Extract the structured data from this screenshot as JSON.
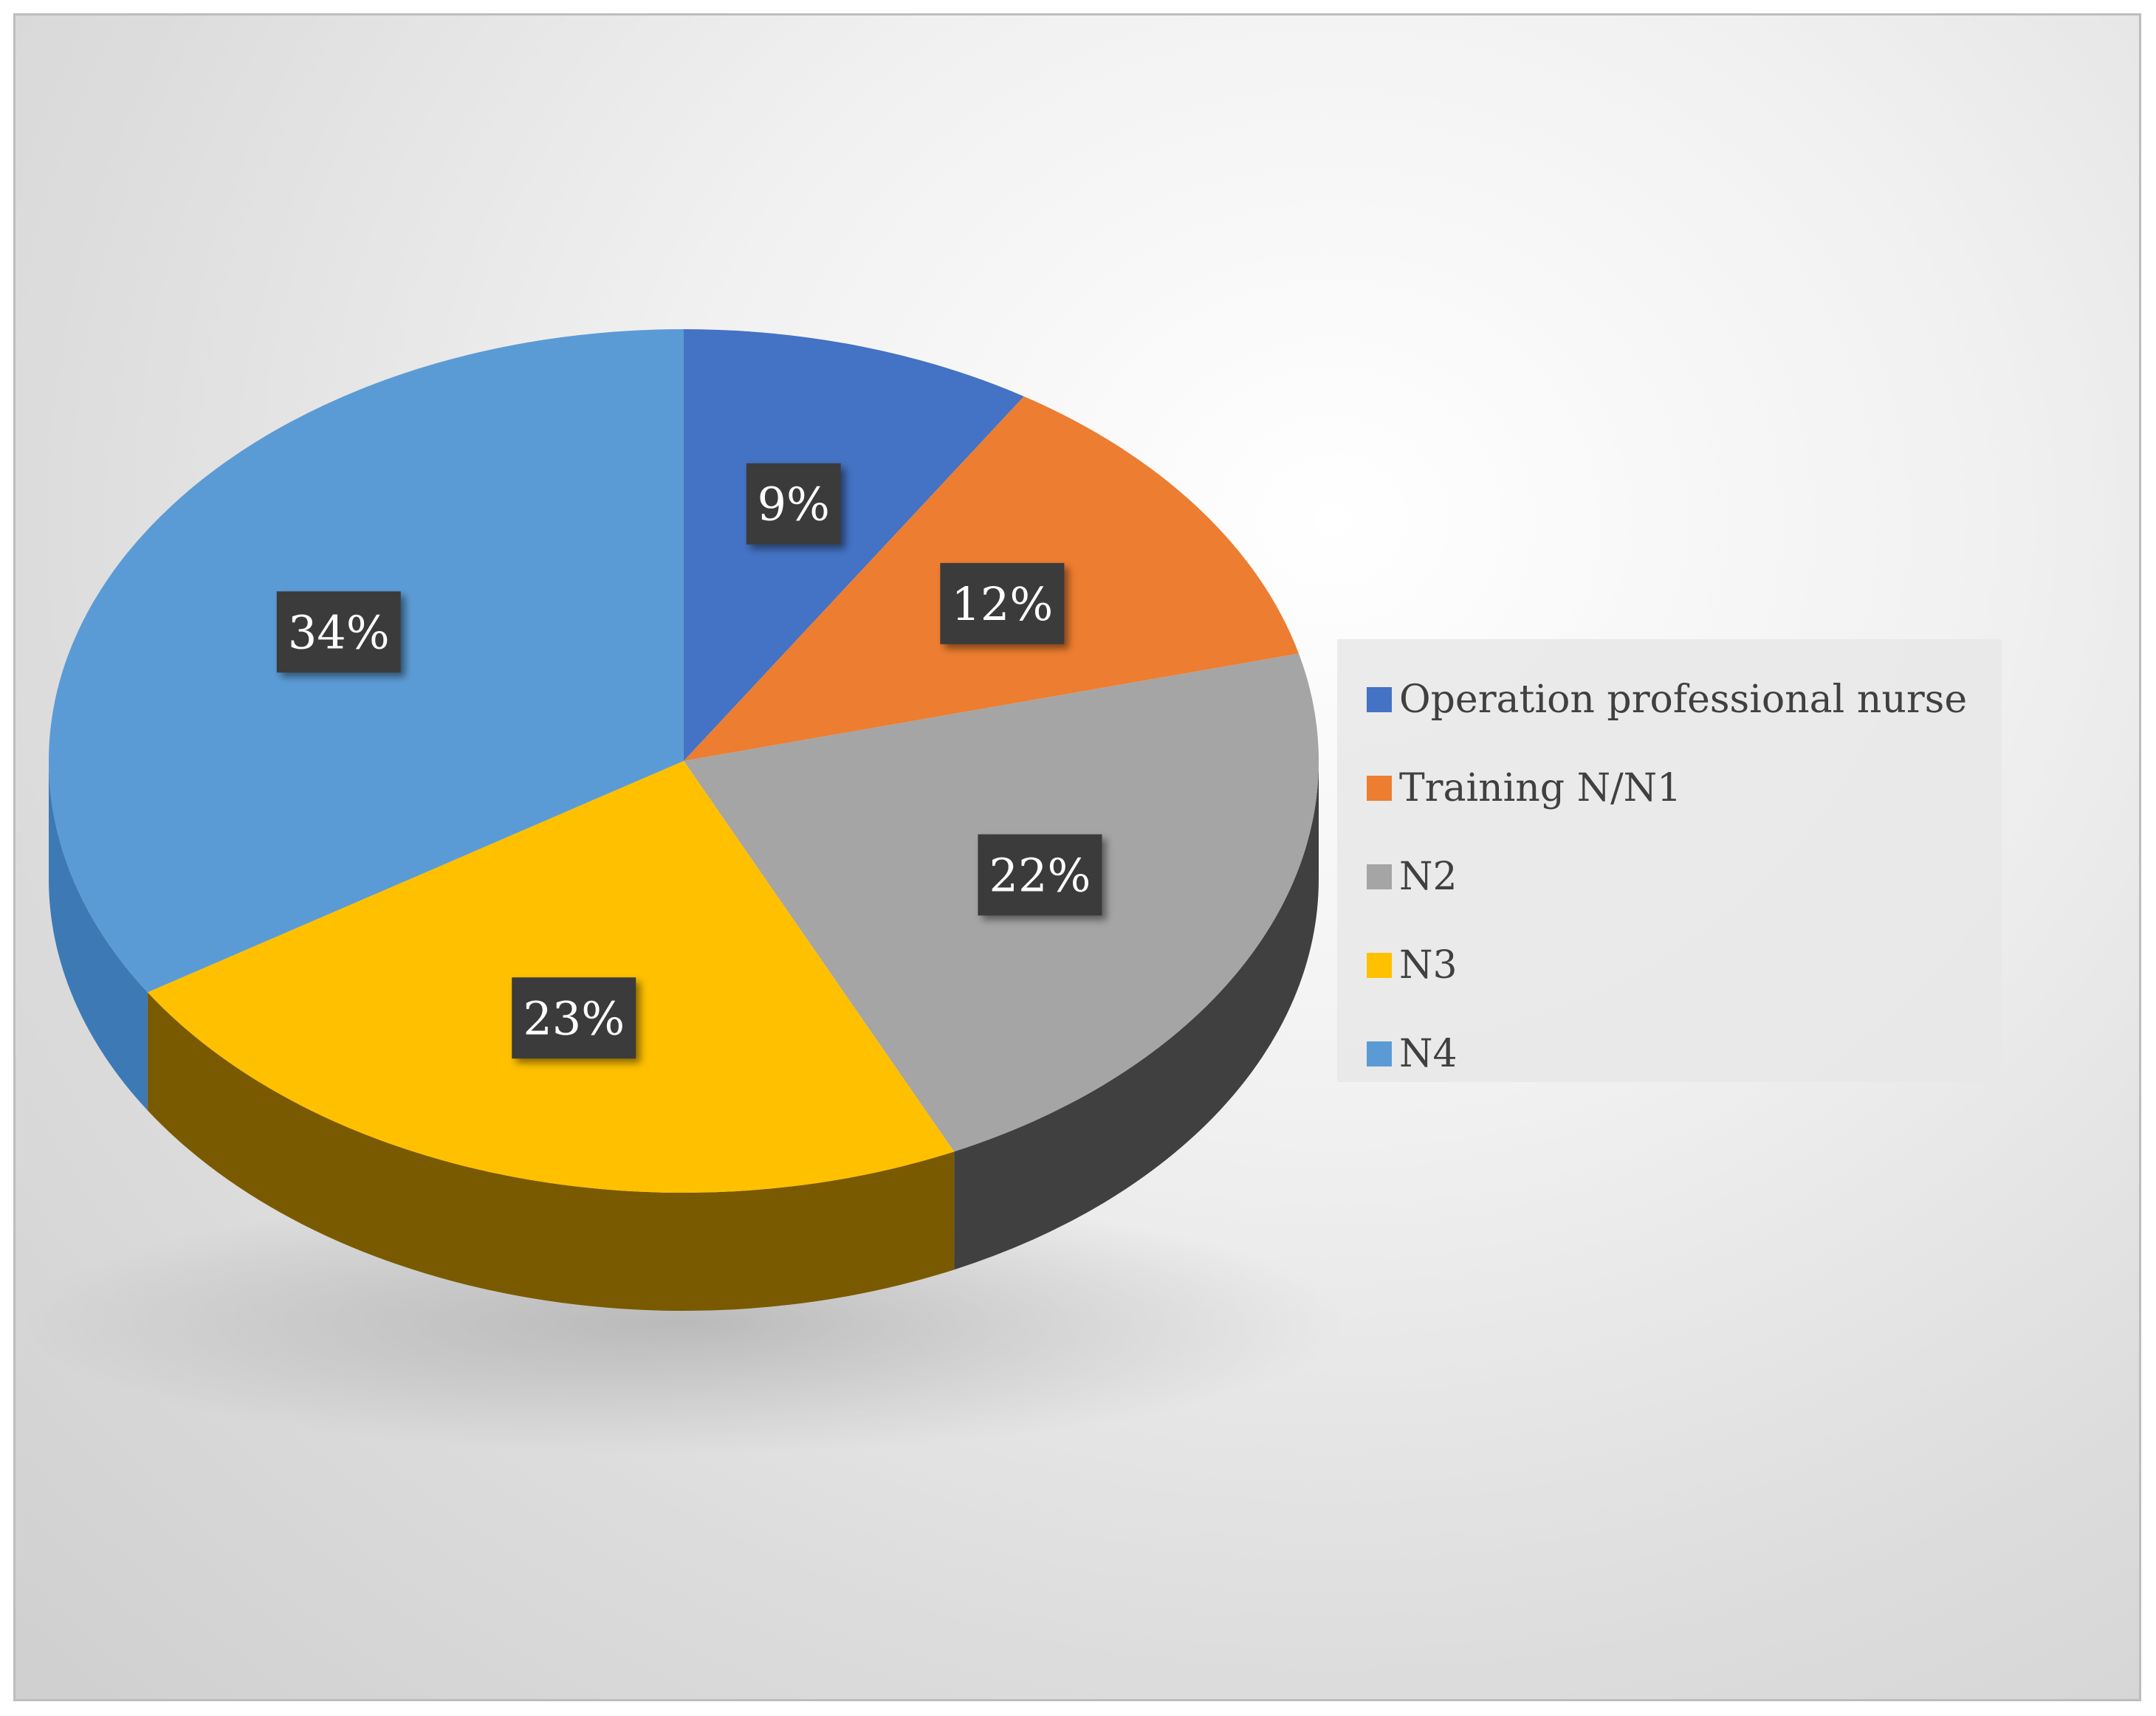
{
  "chart_data": {
    "type": "pie",
    "title": "",
    "categories": [
      "Operation professional nurse",
      "Training N/N1",
      "N2",
      "N3",
      "N4"
    ],
    "values": [
      9,
      12,
      22,
      23,
      34
    ],
    "data_labels": [
      "9%",
      "12%",
      "22%",
      "23%",
      "34%"
    ],
    "unit": "%",
    "style": "3d",
    "start": "12-o-clock",
    "direction": "clockwise",
    "legend_position": "right",
    "colors": [
      "#4472C4",
      "#ED7D31",
      "#A5A5A5",
      "#FFC000",
      "#5B9BD5"
    ],
    "side_colors": [
      "#2f5597",
      "#a85420",
      "#404040",
      "#7a5a00",
      "#3d7ab5"
    ]
  },
  "legend": {
    "items": [
      {
        "label": "Operation professional nurse",
        "color": "#4472C4"
      },
      {
        "label": "Training N/N1",
        "color": "#ED7D31"
      },
      {
        "label": "N2",
        "color": "#A5A5A5"
      },
      {
        "label": "N3",
        "color": "#FFC000"
      },
      {
        "label": "N4",
        "color": "#5B9BD5"
      }
    ]
  }
}
